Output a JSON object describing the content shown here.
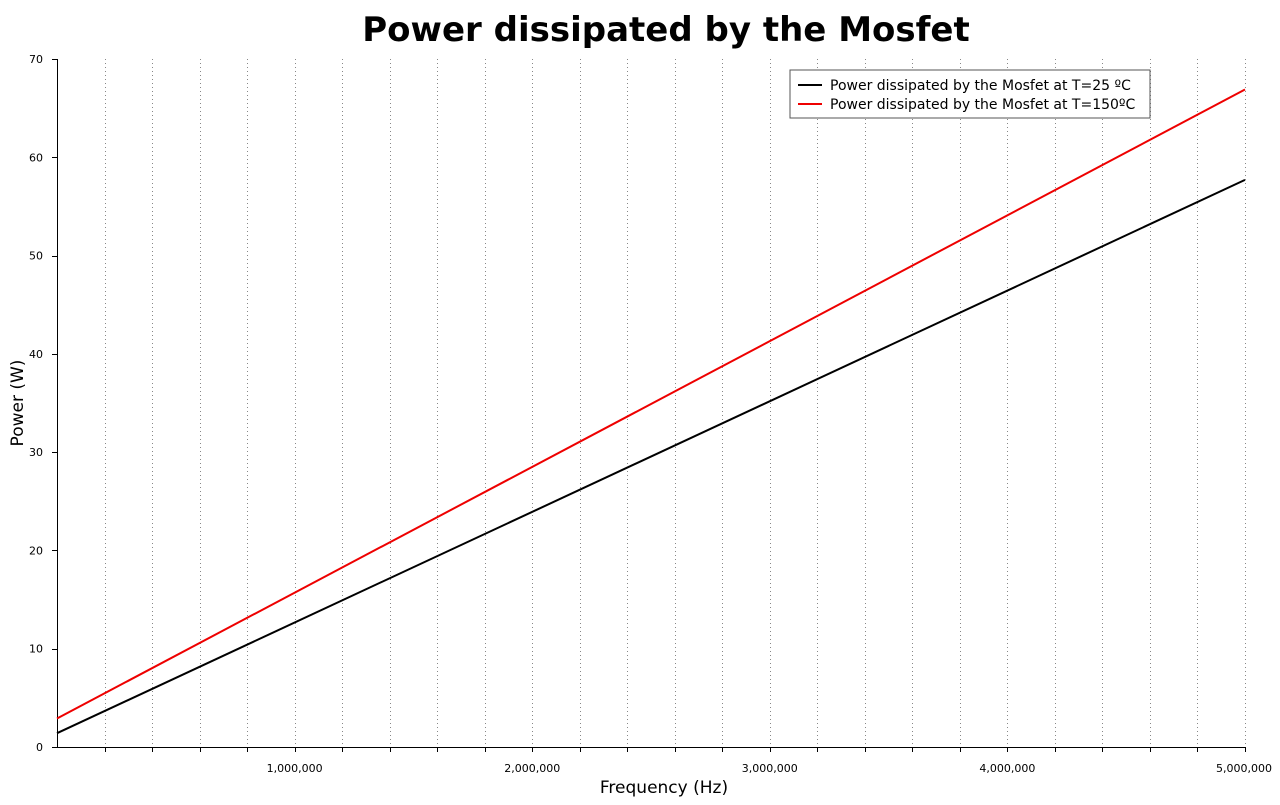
{
  "chart_data": {
    "type": "line",
    "title": "Power dissipated by the Mosfet",
    "xlabel": "Frequency (Hz)",
    "ylabel": "Power (W)",
    "xlim": [
      0,
      5000000
    ],
    "ylim": [
      0,
      70
    ],
    "x_ticks": [
      1000000,
      2000000,
      3000000,
      4000000,
      5000000
    ],
    "x_tick_labels": [
      "1,000,000",
      "2,000,000",
      "3,000,000",
      "4,000,000",
      "5,000,000"
    ],
    "x_minor_step": 200000,
    "y_ticks": [
      0,
      10,
      20,
      30,
      40,
      50,
      60,
      70
    ],
    "y_tick_labels": [
      "0",
      "10",
      "20",
      "30",
      "40",
      "50",
      "60",
      "70"
    ],
    "grid": "vertical-dotted",
    "legend_position": "top-right",
    "series": [
      {
        "name": "Power dissipated by the Mosfet at T=25 ºC",
        "color": "#000000",
        "x": [
          0,
          5000000
        ],
        "y": [
          1.4,
          57.7
        ]
      },
      {
        "name": "Power dissipated by the Mosfet at T=150ºC",
        "color": "#ee0000",
        "x": [
          0,
          5000000
        ],
        "y": [
          2.9,
          66.9
        ]
      }
    ]
  }
}
